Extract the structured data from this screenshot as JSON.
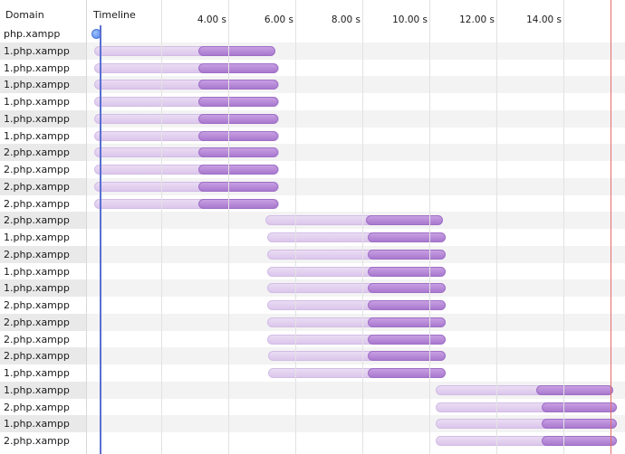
{
  "header": {
    "domain_label": "Domain",
    "timeline_label": "Timeline"
  },
  "ticks": [
    "4.00 s",
    "6.00 s",
    "8.00 s",
    "10.00 s",
    "12.00 s",
    "14.00 s"
  ],
  "timeline": {
    "origin_s": 0,
    "end_s": 15.5
  },
  "rows": [
    {
      "domain": "php.xampp",
      "type": "dot",
      "start_s": 0.0
    },
    {
      "domain": "1.php.xampp",
      "wait_start_s": 0.0,
      "recv_start_s": 3.1,
      "end_s": 5.4
    },
    {
      "domain": "1.php.xampp",
      "wait_start_s": 0.0,
      "recv_start_s": 3.1,
      "end_s": 5.5
    },
    {
      "domain": "1.php.xampp",
      "wait_start_s": 0.0,
      "recv_start_s": 3.1,
      "end_s": 5.5
    },
    {
      "domain": "1.php.xampp",
      "wait_start_s": 0.0,
      "recv_start_s": 3.1,
      "end_s": 5.5
    },
    {
      "domain": "1.php.xampp",
      "wait_start_s": 0.0,
      "recv_start_s": 3.1,
      "end_s": 5.5
    },
    {
      "domain": "1.php.xampp",
      "wait_start_s": 0.0,
      "recv_start_s": 3.1,
      "end_s": 5.5
    },
    {
      "domain": "2.php.xampp",
      "wait_start_s": 0.0,
      "recv_start_s": 3.1,
      "end_s": 5.5
    },
    {
      "domain": "2.php.xampp",
      "wait_start_s": 0.0,
      "recv_start_s": 3.1,
      "end_s": 5.5
    },
    {
      "domain": "2.php.xampp",
      "wait_start_s": 0.0,
      "recv_start_s": 3.1,
      "end_s": 5.5
    },
    {
      "domain": "2.php.xampp",
      "wait_start_s": 0.0,
      "recv_start_s": 3.1,
      "end_s": 5.5
    },
    {
      "domain": "2.php.xampp",
      "wait_start_s": 5.1,
      "recv_start_s": 8.1,
      "end_s": 10.4
    },
    {
      "domain": "1.php.xampp",
      "wait_start_s": 5.15,
      "recv_start_s": 8.15,
      "end_s": 10.5
    },
    {
      "domain": "2.php.xampp",
      "wait_start_s": 5.15,
      "recv_start_s": 8.15,
      "end_s": 10.5
    },
    {
      "domain": "1.php.xampp",
      "wait_start_s": 5.15,
      "recv_start_s": 8.15,
      "end_s": 10.5
    },
    {
      "domain": "1.php.xampp",
      "wait_start_s": 5.15,
      "recv_start_s": 8.15,
      "end_s": 10.5
    },
    {
      "domain": "2.php.xampp",
      "wait_start_s": 5.15,
      "recv_start_s": 8.15,
      "end_s": 10.5
    },
    {
      "domain": "2.php.xampp",
      "wait_start_s": 5.15,
      "recv_start_s": 8.15,
      "end_s": 10.5
    },
    {
      "domain": "2.php.xampp",
      "wait_start_s": 5.15,
      "recv_start_s": 8.15,
      "end_s": 10.5
    },
    {
      "domain": "2.php.xampp",
      "wait_start_s": 5.2,
      "recv_start_s": 8.15,
      "end_s": 10.5
    },
    {
      "domain": "1.php.xampp",
      "wait_start_s": 5.2,
      "recv_start_s": 8.15,
      "end_s": 10.5
    },
    {
      "domain": "1.php.xampp",
      "wait_start_s": 10.2,
      "recv_start_s": 13.2,
      "end_s": 15.5
    },
    {
      "domain": "2.php.xampp",
      "wait_start_s": 10.2,
      "recv_start_s": 13.35,
      "end_s": 15.6
    },
    {
      "domain": "1.php.xampp",
      "wait_start_s": 10.2,
      "recv_start_s": 13.35,
      "end_s": 15.6
    },
    {
      "domain": "2.php.xampp",
      "wait_start_s": 10.2,
      "recv_start_s": 13.35,
      "end_s": 15.6
    }
  ],
  "colors": {
    "wait": "#dcc6ec",
    "receive": "#b386d6",
    "start_marker": "#5a6fd1",
    "load_marker": "#e66a6a"
  }
}
